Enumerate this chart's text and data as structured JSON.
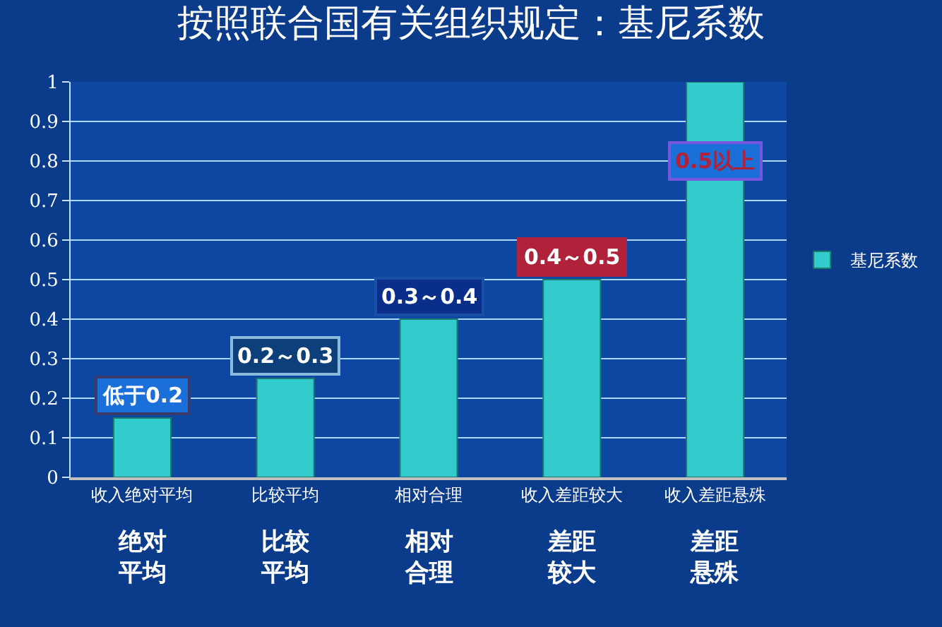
{
  "chart_data": {
    "type": "bar",
    "title": "按照联合国有关组织规定：基尼系数",
    "categories": [
      "收入绝对平均",
      "比较平均",
      "相对合理",
      "收入差距较大",
      "收入差距悬殊"
    ],
    "series": [
      {
        "name": "基尼系数",
        "color": "#33cccc",
        "values": [
          0.15,
          0.25,
          0.4,
          0.5,
          1
        ]
      }
    ],
    "ylim": [
      0,
      1
    ],
    "yticks": [
      0,
      0.1,
      0.2,
      0.3,
      0.4,
      0.5,
      0.6,
      0.7,
      0.8,
      0.9,
      1
    ],
    "grid": "y",
    "legend": "right",
    "annotations": [
      {
        "text": "低于0.2",
        "x": "收入绝对平均",
        "y": 0.15
      },
      {
        "text": "0.2～0.3",
        "x": "比较平均",
        "y": 0.25
      },
      {
        "text": "0.3～0.4",
        "x": "相对合理",
        "y": 0.4
      },
      {
        "text": "0.4～0.5",
        "x": "收入差距较大",
        "y": 0.5
      },
      "0.5以上",
      "绝对平均",
      "比较平均",
      "相对合理",
      "差距较大",
      "差距悬殊"
    ]
  }
}
